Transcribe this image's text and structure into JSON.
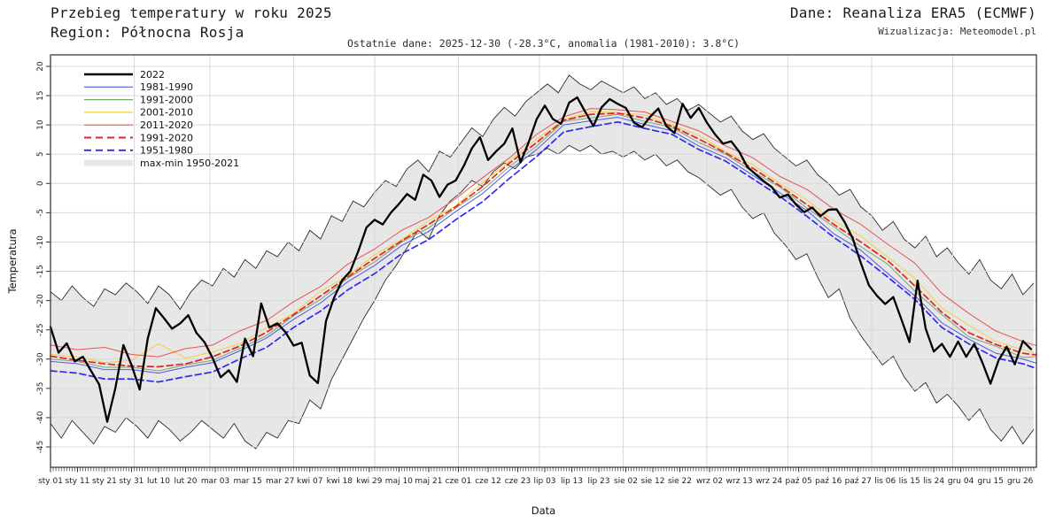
{
  "header": {
    "title": "Przebieg temperatury w roku 2025",
    "region": "Region: Północna Rosja",
    "source": "Dane: Reanaliza ERA5 (ECMWF)",
    "credit": "Wizualizacja: Meteomodel.pl",
    "subtitle": "Ostatnie dane: 2025-12-30 (-28.3°C, anomalia (1981-2010): 3.8°C)"
  },
  "chart_data": {
    "type": "line",
    "title": "Przebieg temperatury w roku 2025 — Region: Północna Rosja",
    "xlabel": "Data",
    "ylabel": "Temperatura",
    "ylim": [
      -48.5,
      22
    ],
    "yticks": [
      20,
      15,
      10,
      5,
      0,
      -5,
      -10,
      -15,
      -20,
      -25,
      -30,
      -35,
      -40,
      -45
    ],
    "days_in_year": 365,
    "grid": true,
    "legend_position": "upper-left",
    "colors": {
      "y2022": "#000000",
      "d1981_1990": "#5656e0",
      "d1991_2000": "#74a874",
      "d2001_2010": "#f5cf3a",
      "d2011_2020": "#e85450",
      "m1991_2020": "#e32424",
      "m1951_1980": "#2c2cf0",
      "band_fill": "#e7e7e7",
      "band_edge": "#2b2b2b",
      "grid_line": "#d8d8d8",
      "frame": "#3c3c3c"
    },
    "xticks": [
      {
        "label": "sty 01",
        "day": 0
      },
      {
        "label": "sty 11",
        "day": 10
      },
      {
        "label": "sty 21",
        "day": 20
      },
      {
        "label": "sty 31",
        "day": 30
      },
      {
        "label": "lut 10",
        "day": 40
      },
      {
        "label": "lut 20",
        "day": 50
      },
      {
        "label": "mar 03",
        "day": 61
      },
      {
        "label": "mar 15",
        "day": 73
      },
      {
        "label": "mar 27",
        "day": 85
      },
      {
        "label": "kwi 07",
        "day": 96
      },
      {
        "label": "kwi 18",
        "day": 107
      },
      {
        "label": "kwi 29",
        "day": 118
      },
      {
        "label": "maj 10",
        "day": 129
      },
      {
        "label": "maj 21",
        "day": 140
      },
      {
        "label": "cze 01",
        "day": 151
      },
      {
        "label": "cze 12",
        "day": 162
      },
      {
        "label": "cze 23",
        "day": 173
      },
      {
        "label": "lip 03",
        "day": 183
      },
      {
        "label": "lip 13",
        "day": 193
      },
      {
        "label": "lip 23",
        "day": 203
      },
      {
        "label": "sie 02",
        "day": 213
      },
      {
        "label": "sie 12",
        "day": 223
      },
      {
        "label": "sie 22",
        "day": 233
      },
      {
        "label": "wrz 02",
        "day": 244
      },
      {
        "label": "wrz 13",
        "day": 255
      },
      {
        "label": "wrz 24",
        "day": 266
      },
      {
        "label": "paź 05",
        "day": 277
      },
      {
        "label": "paź 16",
        "day": 288
      },
      {
        "label": "paź 27",
        "day": 299
      },
      {
        "label": "lis 06",
        "day": 309
      },
      {
        "label": "lis 15",
        "day": 318
      },
      {
        "label": "lis 24",
        "day": 327
      },
      {
        "label": "gru 04",
        "day": 337
      },
      {
        "label": "gru 15",
        "day": 348
      },
      {
        "label": "gru 26",
        "day": 359
      }
    ],
    "month_grid_days": [
      31,
      59,
      90,
      120,
      151,
      181,
      212,
      243,
      273,
      304,
      334
    ],
    "day_grids": {
      "clim": [
        0,
        10,
        20,
        30,
        40,
        50,
        60,
        70,
        80,
        90,
        100,
        110,
        120,
        130,
        140,
        150,
        160,
        170,
        180,
        190,
        200,
        210,
        220,
        230,
        240,
        250,
        260,
        270,
        280,
        290,
        300,
        310,
        320,
        330,
        340,
        350,
        360,
        365
      ],
      "daily3": {
        "start": 0,
        "step": 3,
        "count": 122
      },
      "daily4": {
        "start": 0,
        "step": 4,
        "count": 92
      }
    },
    "band": {
      "name": "max-min 1950-2021",
      "grid": "daily4",
      "max": [
        -18.5,
        -20.0,
        -17.5,
        -19.5,
        -21.0,
        -18.0,
        -19.0,
        -17.0,
        -18.5,
        -20.5,
        -17.5,
        -19.0,
        -21.5,
        -18.5,
        -16.5,
        -17.5,
        -14.5,
        -16.0,
        -13.0,
        -14.5,
        -11.5,
        -12.5,
        -10.0,
        -11.5,
        -8.0,
        -9.5,
        -5.5,
        -6.5,
        -3.0,
        -4.0,
        -1.5,
        0.5,
        -0.5,
        2.5,
        4.0,
        2.0,
        5.5,
        4.5,
        7.0,
        9.5,
        8.0,
        11.0,
        13.0,
        11.5,
        14.0,
        15.5,
        17.0,
        15.5,
        18.5,
        17.0,
        16.0,
        17.5,
        16.5,
        15.5,
        16.5,
        14.5,
        15.5,
        13.5,
        14.5,
        12.5,
        13.5,
        12.0,
        10.5,
        11.5,
        9.0,
        7.5,
        8.5,
        6.0,
        4.5,
        3.0,
        4.0,
        1.5,
        0.0,
        -2.0,
        -1.0,
        -4.0,
        -5.5,
        -8.0,
        -6.5,
        -9.5,
        -11.0,
        -9.0,
        -12.5,
        -11.0,
        -13.5,
        -15.5,
        -13.0,
        -16.5,
        -18.0,
        -15.5,
        -19.0,
        -17.0
      ],
      "min": [
        -41.0,
        -43.5,
        -40.5,
        -42.5,
        -44.5,
        -41.5,
        -42.5,
        -40.0,
        -41.5,
        -43.5,
        -40.5,
        -42.0,
        -44.0,
        -42.5,
        -40.5,
        -42.0,
        -43.5,
        -41.0,
        -44.0,
        -45.3,
        -42.5,
        -43.5,
        -40.5,
        -41.0,
        -37.0,
        -38.5,
        -33.5,
        -30.0,
        -26.5,
        -23.0,
        -20.0,
        -16.5,
        -14.0,
        -11.0,
        -8.0,
        -9.5,
        -5.5,
        -3.0,
        -1.5,
        0.5,
        -0.5,
        2.0,
        3.5,
        2.5,
        4.5,
        5.0,
        6.0,
        5.0,
        6.5,
        5.5,
        6.5,
        5.0,
        5.5,
        4.5,
        5.5,
        4.0,
        5.0,
        3.0,
        4.0,
        2.0,
        1.0,
        -0.5,
        -2.0,
        -1.0,
        -4.0,
        -6.0,
        -5.0,
        -8.5,
        -10.5,
        -13.0,
        -12.0,
        -16.0,
        -19.5,
        -18.0,
        -23.0,
        -26.0,
        -28.5,
        -31.0,
        -29.5,
        -33.0,
        -35.5,
        -34.0,
        -37.5,
        -36.0,
        -38.0,
        -40.5,
        -38.5,
        -42.0,
        -44.0,
        -41.5,
        -44.5,
        -42.0
      ]
    },
    "series": [
      {
        "name": "1981-1990",
        "color": "#5656e0",
        "width": 1.0,
        "dash": null,
        "grid": "clim",
        "values": [
          -30.4,
          -30.8,
          -31.8,
          -31.8,
          -32.4,
          -31.4,
          -30.6,
          -28.6,
          -26.4,
          -23.2,
          -20.4,
          -16.8,
          -14.0,
          -10.6,
          -8.2,
          -4.8,
          -1.7,
          2.3,
          5.8,
          10.0,
          10.7,
          11.3,
          10.1,
          9.0,
          6.4,
          4.4,
          1.4,
          -1.6,
          -4.6,
          -8.6,
          -11.4,
          -15.4,
          -19.2,
          -23.8,
          -26.6,
          -29.0,
          -30.0,
          -30.7
        ]
      },
      {
        "name": "1991-2000",
        "color": "#74a874",
        "width": 1.0,
        "dash": null,
        "grid": "clim",
        "values": [
          -30.0,
          -30.4,
          -31.4,
          -31.4,
          -32.0,
          -31.0,
          -30.2,
          -28.2,
          -26.0,
          -22.6,
          -19.8,
          -16.2,
          -13.4,
          -10.0,
          -7.6,
          -4.2,
          -1.1,
          2.9,
          6.4,
          10.6,
          11.2,
          11.8,
          10.6,
          9.6,
          7.0,
          5.0,
          2.0,
          -0.6,
          -4.2,
          -7.4,
          -10.8,
          -13.8,
          -18.4,
          -22.4,
          -26.2,
          -27.8,
          -29.7,
          -29.6
        ]
      },
      {
        "name": "2001-2010",
        "color": "#f5cf3a",
        "width": 1.0,
        "dash": null,
        "grid": "clim",
        "values": [
          -29.2,
          -29.6,
          -30.6,
          -30.2,
          -27.4,
          -29.8,
          -28.8,
          -27.4,
          -24.6,
          -22.2,
          -18.4,
          -15.8,
          -12.2,
          -9.6,
          -6.4,
          -3.8,
          0.2,
          3.8,
          7.6,
          10.8,
          12.3,
          12.1,
          11.7,
          10.0,
          8.2,
          5.4,
          3.2,
          0.0,
          -2.8,
          -6.4,
          -9.0,
          -12.6,
          -16.2,
          -21.3,
          -24.2,
          -27.0,
          -28.4,
          -29.1
        ]
      },
      {
        "name": "2011-2020",
        "color": "#e85450",
        "width": 1.0,
        "dash": null,
        "grid": "clim",
        "values": [
          -27.6,
          -28.4,
          -28.0,
          -29.2,
          -29.6,
          -28.2,
          -27.6,
          -25.2,
          -23.4,
          -20.2,
          -17.6,
          -13.8,
          -11.2,
          -8.0,
          -5.8,
          -2.6,
          1.0,
          4.4,
          8.4,
          11.4,
          12.8,
          12.6,
          12.2,
          10.6,
          9.0,
          6.4,
          4.4,
          1.2,
          -1.0,
          -4.4,
          -7.0,
          -10.4,
          -13.6,
          -18.8,
          -22.2,
          -25.2,
          -27.0,
          -27.7
        ]
      },
      {
        "name": "1991-2020",
        "color": "#e32424",
        "width": 1.7,
        "dash": "7,4",
        "grid": "clim",
        "values": [
          -29.5,
          -30.2,
          -30.8,
          -31.2,
          -31.3,
          -30.8,
          -29.6,
          -27.8,
          -25.4,
          -22.4,
          -19.2,
          -16.0,
          -12.8,
          -9.8,
          -7.0,
          -4.0,
          -0.5,
          3.5,
          7.0,
          10.8,
          11.8,
          12.0,
          11.2,
          9.8,
          7.6,
          5.2,
          2.6,
          -0.4,
          -3.6,
          -7.0,
          -10.0,
          -13.2,
          -17.5,
          -22.0,
          -25.5,
          -27.5,
          -29.0,
          -29.3
        ]
      },
      {
        "name": "1951-1980",
        "color": "#2c2cf0",
        "width": 1.7,
        "dash": "7,4",
        "grid": "clim",
        "values": [
          -32.0,
          -32.4,
          -33.4,
          -33.4,
          -33.9,
          -33.0,
          -32.2,
          -30.0,
          -28.0,
          -24.6,
          -21.8,
          -18.2,
          -15.4,
          -12.0,
          -9.6,
          -6.2,
          -3.1,
          0.9,
          4.6,
          8.8,
          9.7,
          10.5,
          9.4,
          8.4,
          5.8,
          3.8,
          0.8,
          -2.2,
          -5.6,
          -9.2,
          -12.4,
          -16.0,
          -19.8,
          -24.6,
          -27.4,
          -29.8,
          -30.8,
          -31.6
        ]
      },
      {
        "name": "2022",
        "color": "#000000",
        "width": 2.3,
        "dash": null,
        "grid": "daily3",
        "values": [
          -24.5,
          -28.9,
          -27.3,
          -30.4,
          -29.6,
          -32.0,
          -34.3,
          -40.7,
          -35.0,
          -27.6,
          -31.0,
          -35.2,
          -26.5,
          -21.3,
          -23.0,
          -24.8,
          -23.9,
          -22.5,
          -25.5,
          -27.1,
          -29.8,
          -33.1,
          -31.9,
          -33.9,
          -26.5,
          -29.5,
          -20.5,
          -24.6,
          -23.9,
          -25.4,
          -27.7,
          -27.2,
          -32.8,
          -34.1,
          -23.5,
          -19.5,
          -16.5,
          -15.0,
          -11.5,
          -7.5,
          -6.2,
          -7.0,
          -5.0,
          -3.5,
          -1.8,
          -2.8,
          1.5,
          0.5,
          -2.3,
          -0.2,
          0.5,
          3.0,
          6.0,
          7.9,
          4.0,
          5.5,
          6.8,
          9.4,
          3.6,
          7.0,
          11.0,
          13.3,
          11.0,
          10.2,
          13.8,
          14.7,
          12.2,
          9.8,
          13.0,
          14.4,
          13.6,
          12.9,
          10.4,
          9.6,
          11.4,
          12.8,
          9.8,
          8.6,
          13.6,
          11.2,
          12.9,
          10.4,
          8.4,
          6.8,
          7.2,
          5.4,
          2.8,
          1.6,
          0.4,
          -0.6,
          -2.4,
          -1.9,
          -3.6,
          -4.9,
          -4.1,
          -5.6,
          -4.5,
          -4.4,
          -6.6,
          -9.4,
          -13.6,
          -17.4,
          -19.2,
          -20.6,
          -19.4,
          -23.2,
          -27.1,
          -16.6,
          -24.8,
          -28.7,
          -27.4,
          -29.6,
          -27.0,
          -29.6,
          -27.4,
          -30.6,
          -34.2,
          -30.2,
          -27.9,
          -30.9,
          -26.9,
          -28.3
        ]
      }
    ],
    "legend": [
      {
        "label": "2022",
        "kind": "line",
        "color": "#000000",
        "width": 2.6,
        "dash": null
      },
      {
        "label": "1981-1990",
        "kind": "line",
        "color": "#5656e0",
        "width": 1.2,
        "dash": null
      },
      {
        "label": "1991-2000",
        "kind": "line",
        "color": "#74a874",
        "width": 1.2,
        "dash": null
      },
      {
        "label": "2001-2010",
        "kind": "line",
        "color": "#f5cf3a",
        "width": 1.2,
        "dash": null
      },
      {
        "label": "2011-2020",
        "kind": "line",
        "color": "#e85450",
        "width": 1.2,
        "dash": null
      },
      {
        "label": "1991-2020",
        "kind": "line",
        "color": "#e32424",
        "width": 1.9,
        "dash": "8,5"
      },
      {
        "label": "1951-1980",
        "kind": "line",
        "color": "#2c2cf0",
        "width": 1.9,
        "dash": "8,5"
      },
      {
        "label": "max-min 1950-2021",
        "kind": "band",
        "color": "#e7e7e7"
      }
    ]
  }
}
